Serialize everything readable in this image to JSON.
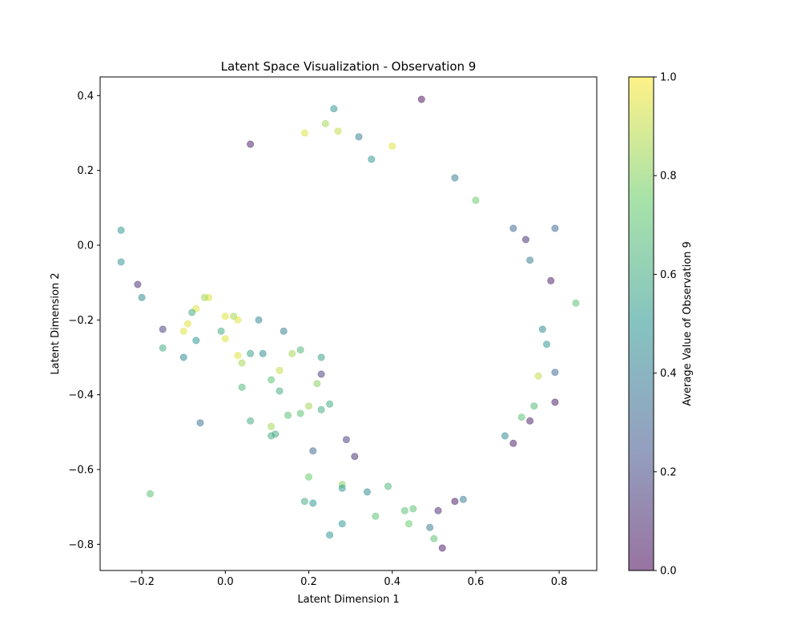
{
  "chart_data": {
    "type": "scatter",
    "title": "Latent Space Visualization - Observation 9",
    "xlabel": "Latent Dimension 1",
    "ylabel": "Latent Dimension 2",
    "xlim": [
      -0.3,
      0.89
    ],
    "ylim": [
      -0.87,
      0.45
    ],
    "xticks": [
      -0.2,
      0.0,
      0.2,
      0.4,
      0.6,
      0.8
    ],
    "xtick_labels": [
      "−0.2",
      "0.0",
      "0.2",
      "0.4",
      "0.6",
      "0.8"
    ],
    "yticks": [
      -0.8,
      -0.6,
      -0.4,
      -0.2,
      0.0,
      0.2,
      0.4
    ],
    "ytick_labels": [
      "−0.8",
      "−0.6",
      "−0.4",
      "−0.2",
      "0.0",
      "0.2",
      "0.4"
    ],
    "grid": false,
    "colormap": "viridis",
    "marker_alpha": 0.5,
    "colorbar": {
      "label": "Average Value of Observation 9",
      "range": [
        0.0,
        1.0
      ],
      "ticks": [
        0.0,
        0.2,
        0.4,
        0.6,
        0.8,
        1.0
      ],
      "tick_labels": [
        "0.0",
        "0.2",
        "0.4",
        "0.6",
        "0.8",
        "1.0"
      ]
    },
    "points": [
      {
        "x": 0.47,
        "y": 0.39,
        "c": 0.02
      },
      {
        "x": 0.26,
        "y": 0.365,
        "c": 0.5
      },
      {
        "x": 0.24,
        "y": 0.325,
        "c": 0.85
      },
      {
        "x": 0.19,
        "y": 0.3,
        "c": 0.95
      },
      {
        "x": 0.27,
        "y": 0.305,
        "c": 0.9
      },
      {
        "x": 0.32,
        "y": 0.29,
        "c": 0.4
      },
      {
        "x": 0.06,
        "y": 0.27,
        "c": 0.05
      },
      {
        "x": 0.35,
        "y": 0.23,
        "c": 0.5
      },
      {
        "x": 0.4,
        "y": 0.265,
        "c": 0.95
      },
      {
        "x": 0.55,
        "y": 0.18,
        "c": 0.4
      },
      {
        "x": 0.6,
        "y": 0.12,
        "c": 0.75
      },
      {
        "x": 0.69,
        "y": 0.045,
        "c": 0.3
      },
      {
        "x": 0.72,
        "y": 0.015,
        "c": 0.1
      },
      {
        "x": 0.79,
        "y": 0.045,
        "c": 0.3
      },
      {
        "x": 0.73,
        "y": -0.04,
        "c": 0.4
      },
      {
        "x": 0.84,
        "y": -0.155,
        "c": 0.7
      },
      {
        "x": 0.78,
        "y": -0.095,
        "c": 0.05
      },
      {
        "x": 0.76,
        "y": -0.225,
        "c": 0.45
      },
      {
        "x": 0.77,
        "y": -0.265,
        "c": 0.5
      },
      {
        "x": 0.75,
        "y": -0.35,
        "c": 0.9
      },
      {
        "x": 0.79,
        "y": -0.34,
        "c": 0.3
      },
      {
        "x": 0.79,
        "y": -0.42,
        "c": 0.05
      },
      {
        "x": 0.74,
        "y": -0.43,
        "c": 0.65
      },
      {
        "x": 0.73,
        "y": -0.47,
        "c": 0.05
      },
      {
        "x": 0.71,
        "y": -0.46,
        "c": 0.7
      },
      {
        "x": 0.69,
        "y": -0.53,
        "c": 0.05
      },
      {
        "x": 0.67,
        "y": -0.51,
        "c": 0.45
      },
      {
        "x": 0.52,
        "y": -0.81,
        "c": 0.05
      },
      {
        "x": 0.5,
        "y": -0.785,
        "c": 0.7
      },
      {
        "x": 0.49,
        "y": -0.755,
        "c": 0.4
      },
      {
        "x": 0.44,
        "y": -0.745,
        "c": 0.75
      },
      {
        "x": 0.28,
        "y": -0.745,
        "c": 0.5
      },
      {
        "x": 0.25,
        "y": -0.775,
        "c": 0.5
      },
      {
        "x": 0.36,
        "y": -0.725,
        "c": 0.7
      },
      {
        "x": 0.43,
        "y": -0.71,
        "c": 0.7
      },
      {
        "x": 0.45,
        "y": -0.705,
        "c": 0.7
      },
      {
        "x": 0.51,
        "y": -0.71,
        "c": 0.1
      },
      {
        "x": 0.55,
        "y": -0.685,
        "c": 0.05
      },
      {
        "x": 0.57,
        "y": -0.68,
        "c": 0.4
      },
      {
        "x": 0.19,
        "y": -0.685,
        "c": 0.6
      },
      {
        "x": 0.21,
        "y": -0.69,
        "c": 0.5
      },
      {
        "x": 0.28,
        "y": -0.64,
        "c": 0.8
      },
      {
        "x": 0.28,
        "y": -0.65,
        "c": 0.5
      },
      {
        "x": 0.34,
        "y": -0.66,
        "c": 0.45
      },
      {
        "x": 0.39,
        "y": -0.645,
        "c": 0.65
      },
      {
        "x": 0.2,
        "y": -0.62,
        "c": 0.75
      },
      {
        "x": -0.18,
        "y": -0.665,
        "c": 0.7
      },
      {
        "x": -0.06,
        "y": -0.475,
        "c": 0.35
      },
      {
        "x": 0.06,
        "y": -0.47,
        "c": 0.6
      },
      {
        "x": 0.11,
        "y": -0.485,
        "c": 0.85
      },
      {
        "x": 0.11,
        "y": -0.51,
        "c": 0.6
      },
      {
        "x": 0.12,
        "y": -0.505,
        "c": 0.6
      },
      {
        "x": 0.15,
        "y": -0.455,
        "c": 0.7
      },
      {
        "x": 0.21,
        "y": -0.55,
        "c": 0.3
      },
      {
        "x": 0.29,
        "y": -0.52,
        "c": 0.15
      },
      {
        "x": 0.31,
        "y": -0.565,
        "c": 0.1
      },
      {
        "x": -0.1,
        "y": -0.3,
        "c": 0.45
      },
      {
        "x": -0.15,
        "y": -0.225,
        "c": 0.15
      },
      {
        "x": -0.15,
        "y": -0.275,
        "c": 0.6
      },
      {
        "x": -0.1,
        "y": -0.23,
        "c": 0.95
      },
      {
        "x": -0.07,
        "y": -0.255,
        "c": 0.5
      },
      {
        "x": 0.03,
        "y": -0.295,
        "c": 0.95
      },
      {
        "x": 0.04,
        "y": -0.315,
        "c": 0.85
      },
      {
        "x": 0.06,
        "y": -0.29,
        "c": 0.55
      },
      {
        "x": 0.09,
        "y": -0.29,
        "c": 0.45
      },
      {
        "x": 0.04,
        "y": -0.38,
        "c": 0.65
      },
      {
        "x": 0.11,
        "y": -0.36,
        "c": 0.7
      },
      {
        "x": 0.13,
        "y": -0.335,
        "c": 0.9
      },
      {
        "x": 0.13,
        "y": -0.39,
        "c": 0.6
      },
      {
        "x": 0.14,
        "y": -0.23,
        "c": 0.4
      },
      {
        "x": 0.08,
        "y": -0.2,
        "c": 0.45
      },
      {
        "x": 0.0,
        "y": -0.25,
        "c": 0.95
      },
      {
        "x": -0.01,
        "y": -0.23,
        "c": 0.6
      },
      {
        "x": -0.04,
        "y": -0.14,
        "c": 0.95
      },
      {
        "x": -0.05,
        "y": -0.14,
        "c": 0.85
      },
      {
        "x": -0.07,
        "y": -0.17,
        "c": 0.95
      },
      {
        "x": -0.08,
        "y": -0.18,
        "c": 0.6
      },
      {
        "x": -0.09,
        "y": -0.21,
        "c": 0.95
      },
      {
        "x": 0.0,
        "y": -0.19,
        "c": 0.95
      },
      {
        "x": 0.02,
        "y": -0.19,
        "c": 0.85
      },
      {
        "x": 0.03,
        "y": -0.2,
        "c": 0.95
      },
      {
        "x": -0.2,
        "y": -0.14,
        "c": 0.45
      },
      {
        "x": -0.21,
        "y": -0.105,
        "c": 0.1
      },
      {
        "x": -0.25,
        "y": -0.045,
        "c": 0.5
      },
      {
        "x": -0.25,
        "y": 0.04,
        "c": 0.5
      },
      {
        "x": 0.23,
        "y": -0.44,
        "c": 0.6
      },
      {
        "x": 0.25,
        "y": -0.425,
        "c": 0.6
      },
      {
        "x": 0.18,
        "y": -0.45,
        "c": 0.7
      },
      {
        "x": 0.2,
        "y": -0.43,
        "c": 0.85
      },
      {
        "x": 0.16,
        "y": -0.29,
        "c": 0.85
      },
      {
        "x": 0.18,
        "y": -0.28,
        "c": 0.65
      },
      {
        "x": 0.23,
        "y": -0.3,
        "c": 0.55
      },
      {
        "x": 0.23,
        "y": -0.345,
        "c": 0.15
      },
      {
        "x": 0.22,
        "y": -0.37,
        "c": 0.8
      }
    ]
  }
}
